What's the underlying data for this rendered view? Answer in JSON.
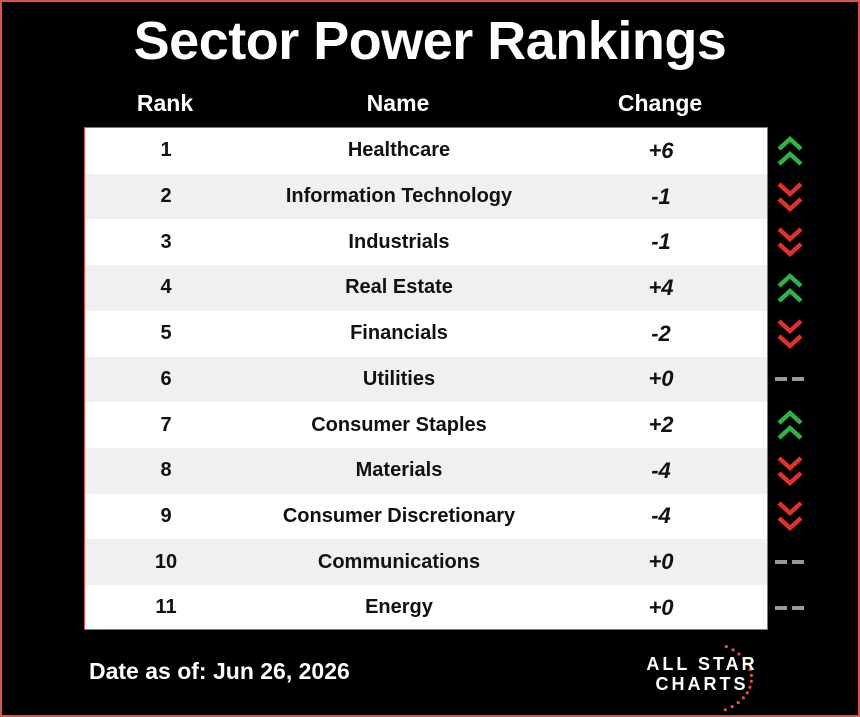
{
  "title": "Sector Power Rankings",
  "headers": {
    "rank": "Rank",
    "name": "Name",
    "change": "Change"
  },
  "rows": [
    {
      "rank": "1",
      "name": "Healthcare",
      "change": "+6",
      "direction": "up"
    },
    {
      "rank": "2",
      "name": "Information Technology",
      "change": "-1",
      "direction": "down"
    },
    {
      "rank": "3",
      "name": "Industrials",
      "change": "-1",
      "direction": "down"
    },
    {
      "rank": "4",
      "name": "Real Estate",
      "change": "+4",
      "direction": "up"
    },
    {
      "rank": "5",
      "name": "Financials",
      "change": "-2",
      "direction": "down"
    },
    {
      "rank": "6",
      "name": "Utilities",
      "change": "+0",
      "direction": "flat"
    },
    {
      "rank": "7",
      "name": "Consumer Staples",
      "change": "+2",
      "direction": "up"
    },
    {
      "rank": "8",
      "name": "Materials",
      "change": "-4",
      "direction": "down"
    },
    {
      "rank": "9",
      "name": "Consumer Discretionary",
      "change": "-4",
      "direction": "down"
    },
    {
      "rank": "10",
      "name": "Communications",
      "change": "+0",
      "direction": "flat"
    },
    {
      "rank": "11",
      "name": "Energy",
      "change": "+0",
      "direction": "flat"
    }
  ],
  "footer": {
    "date_text": "Date as of: Jun 26, 2026"
  },
  "logo": {
    "line1": "ALL STAR",
    "line2": "CHARTS"
  },
  "colors": {
    "up": "#2fb344",
    "down": "#e0312b",
    "flat": "#9a9a9a",
    "accent": "#d9534f"
  }
}
